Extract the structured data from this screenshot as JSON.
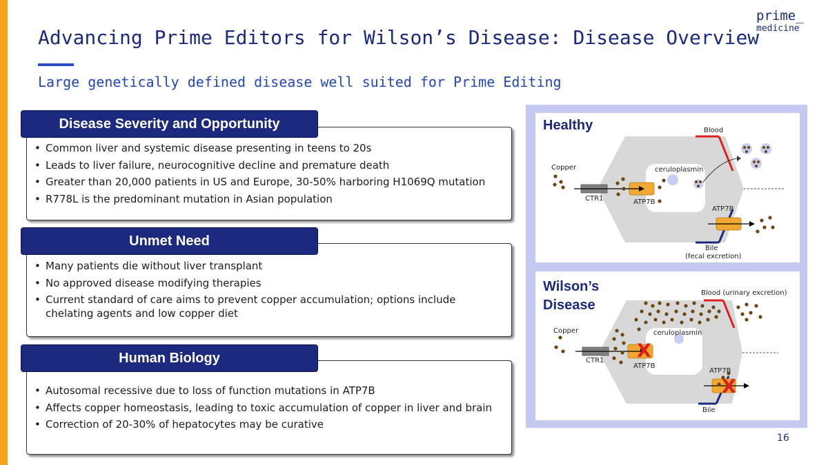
{
  "header": {
    "title": "Advancing Prime Editors for Wilson’s Disease: Disease Overview",
    "subtitle": "Large genetically defined disease well suited for Prime Editing",
    "logo_line1": "prime_",
    "logo_line2": "medicine"
  },
  "sections": [
    {
      "heading": "Disease Severity and Opportunity",
      "bullets": [
        "Common liver and systemic disease presenting in teens to 20s",
        "Leads to liver failure, neurocognitive decline and premature death",
        "Greater than 20,000 patients in US and Europe, 30-50% harboring H1069Q mutation",
        "R778L is the predominant mutation in Asian population"
      ]
    },
    {
      "heading": "Unmet Need",
      "bullets": [
        "Many patients die without liver transplant",
        "No approved disease modifying therapies",
        "Current standard of care aims to prevent copper accumulation; options include chelating agents and low copper diet"
      ]
    },
    {
      "heading": "Human Biology",
      "bullets": [
        "Autosomal recessive due to loss of function mutations in ATP7B",
        "Affects copper homeostasis, leading to toxic accumulation of copper in liver and brain",
        "Correction of 20-30% of hepatocytes may be curative"
      ]
    }
  ],
  "healthy": {
    "title": "Healthy",
    "blood": "Blood",
    "copper": "Copper",
    "ceruloplasmin": "ceruloplasmin",
    "ctr1": "CTR1",
    "atp7b_inner": "ATP7B",
    "atp7b_outer": "ATP7B",
    "bile": "Bile",
    "bile_note": "(fecal excretion)"
  },
  "wilson": {
    "title_line1": "Wilson’s",
    "title_line2": "Disease",
    "blood": "Blood (urinary excretion)",
    "copper": "Copper",
    "ceruloplasmin": "ceruloplasmin",
    "ctr1": "CTR1",
    "atp7b_inner": "ATP7B",
    "atp7b_outer": "ATP7B",
    "bile": "Bile",
    "x_mark": "X"
  },
  "colors": {
    "navy": "#1b2a7e",
    "accent_orange": "#f5a31a",
    "atp7b_box": "#f0a830",
    "copper_dot": "#6b4510",
    "blood_line": "#e01e1e",
    "bile_line": "#1b2a7e",
    "frame": "#c4c9f1"
  },
  "footer": {
    "page_number": "16"
  }
}
